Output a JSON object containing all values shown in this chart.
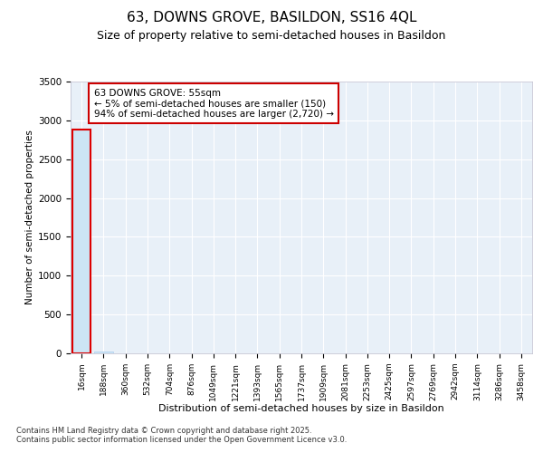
{
  "title1": "63, DOWNS GROVE, BASILDON, SS16 4QL",
  "title2": "Size of property relative to semi-detached houses in Basildon",
  "xlabel": "Distribution of semi-detached houses by size in Basildon",
  "ylabel": "Number of semi-detached properties",
  "annotation_title": "63 DOWNS GROVE: 55sqm",
  "annotation_line2": "← 5% of semi-detached houses are smaller (150)",
  "annotation_line3": "94% of semi-detached houses are larger (2,720) →",
  "copyright": "Contains HM Land Registry data © Crown copyright and database right 2025.\nContains public sector information licensed under the Open Government Licence v3.0.",
  "bar_color": "#cce5f5",
  "bar_edge_color": "#aaccee",
  "subject_bar_color": "#cce5f5",
  "subject_bar_edge_color": "#dd0000",
  "annotation_box_edge_color": "#cc0000",
  "background_color": "#e8f0f8",
  "grid_color": "#ffffff",
  "ylim": [
    0,
    3500
  ],
  "yticks": [
    0,
    500,
    1000,
    1500,
    2000,
    2500,
    3000,
    3500
  ],
  "bin_labels": [
    "16sqm",
    "188sqm",
    "360sqm",
    "532sqm",
    "704sqm",
    "876sqm",
    "1049sqm",
    "1221sqm",
    "1393sqm",
    "1565sqm",
    "1737sqm",
    "1909sqm",
    "2081sqm",
    "2253sqm",
    "2425sqm",
    "2597sqm",
    "2769sqm",
    "2942sqm",
    "3114sqm",
    "3286sqm",
    "3458sqm"
  ],
  "bar_heights": [
    2880,
    25,
    4,
    2,
    1,
    1,
    0,
    0,
    0,
    0,
    0,
    0,
    0,
    0,
    0,
    0,
    0,
    0,
    0,
    0,
    0
  ],
  "subject_bar_index": 0,
  "title1_fontsize": 11,
  "title2_fontsize": 9,
  "xlabel_fontsize": 8,
  "ylabel_fontsize": 7.5,
  "tick_fontsize": 7.5,
  "xtick_fontsize": 6.5,
  "ann_fontsize": 7.5,
  "copyright_fontsize": 6
}
